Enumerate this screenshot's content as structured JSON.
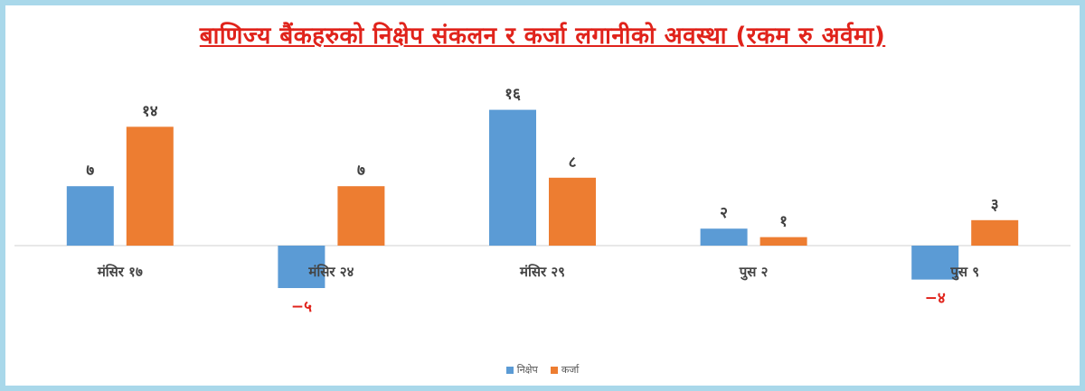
{
  "chart_data": {
    "type": "bar",
    "title": "बाणिज्य बैंकहरुको निक्षेप संकलन र कर्जा लगानीको अवस्था (रकम रु अर्वमा)",
    "categories": [
      "मंसिर १७",
      "मंसिर २४",
      "मंसिर २९",
      "पुस २",
      "पुस ९"
    ],
    "series": [
      {
        "name": "निक्षेप",
        "color": "#5b9bd5",
        "values": [
          7,
          -5,
          16,
          2,
          -4
        ],
        "labels": [
          "७",
          "−५",
          "१६",
          "२",
          "−४"
        ]
      },
      {
        "name": "कर्जा",
        "color": "#ed7d31",
        "values": [
          14,
          7,
          8,
          1,
          3
        ],
        "labels": [
          "१४",
          "७",
          "८",
          "१",
          "३"
        ]
      }
    ],
    "ylim": [
      -6,
      18
    ],
    "grid": false,
    "legend": "bottom-center",
    "positive_label_color": "#404040",
    "negative_label_color": "#e0231b"
  }
}
